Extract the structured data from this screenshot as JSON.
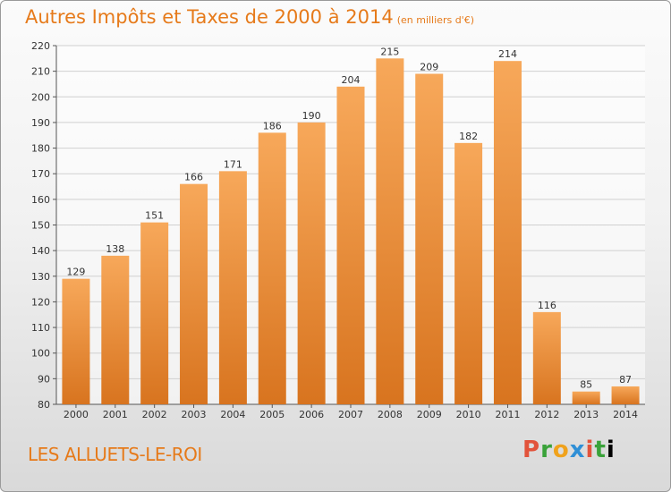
{
  "header": {
    "title": "Autres Impôts et Taxes de 2000 à 2014",
    "subtitle": "(en milliers d'€)"
  },
  "footer": {
    "commune": "LES ALLUETS-LE-ROI",
    "logo": [
      "P",
      "r",
      "o",
      "x",
      "i",
      "t",
      "i"
    ]
  },
  "colors": {
    "accent": "#e67a1a",
    "bar_light": "#f7a85a",
    "bar_dark": "#d8741f",
    "grid": "#d0d0d0"
  },
  "chart_data": {
    "type": "bar",
    "title": "Autres Impôts et Taxes de 2000 à 2014",
    "subtitle": "(en milliers d'€)",
    "categories": [
      "2000",
      "2001",
      "2002",
      "2003",
      "2004",
      "2005",
      "2006",
      "2007",
      "2008",
      "2009",
      "2010",
      "2011",
      "2012",
      "2013",
      "2014"
    ],
    "values": [
      129,
      138,
      151,
      166,
      171,
      186,
      190,
      204,
      215,
      209,
      182,
      214,
      116,
      85,
      87
    ],
    "xlabel": "",
    "ylabel": "",
    "ylim": [
      80,
      220
    ],
    "yticks": [
      80,
      90,
      100,
      110,
      120,
      130,
      140,
      150,
      160,
      170,
      180,
      190,
      200,
      210,
      220
    ],
    "grid": true,
    "legend": "none"
  }
}
